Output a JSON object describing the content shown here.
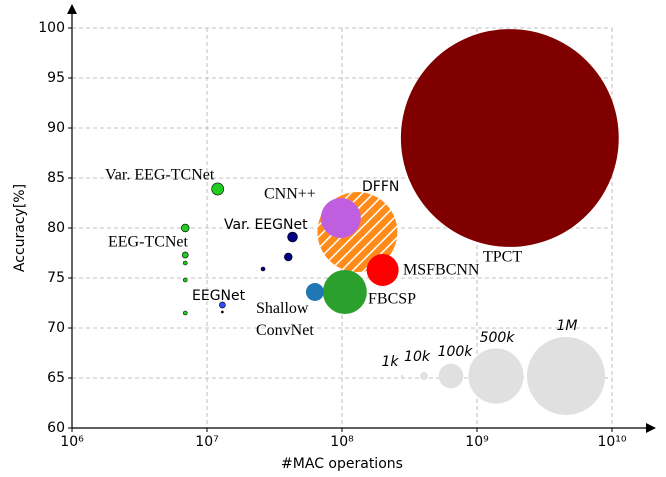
{
  "chart_data": {
    "type": "bubble",
    "xlabel": "#MAC operations",
    "ylabel": "Accuracy[%]",
    "xscale": "log",
    "grid": true,
    "xlim": [
      1000000,
      10000000000
    ],
    "xticks": [
      {
        "value": 1000000,
        "label": "10⁶"
      },
      {
        "value": 10000000,
        "label": "10⁷"
      },
      {
        "value": 100000000,
        "label": "10⁸"
      },
      {
        "value": 1000000000,
        "label": "10⁹"
      },
      {
        "value": 10000000000,
        "label": "10¹⁰"
      }
    ],
    "ylim": [
      60,
      100
    ],
    "yticks": [
      60,
      65,
      70,
      75,
      80,
      85,
      90,
      95,
      100
    ],
    "series": [
      {
        "name": "TPCT",
        "color": "#800000",
        "x": [
          1750000000
        ],
        "values": [
          89
        ],
        "sizes": [
          7800000
        ]
      },
      {
        "name": "DFFN",
        "color": "#ff8c1a",
        "hatch": true,
        "x": [
          130000000
        ],
        "values": [
          79.6
        ],
        "sizes": [
          1050000
        ]
      },
      {
        "name": "CNN++",
        "color": "#bf5fdf",
        "x": [
          98000000
        ],
        "values": [
          81
        ],
        "sizes": [
          263000
        ]
      },
      {
        "name": "MSFBCNN",
        "color": "#ff0000",
        "x": [
          200000000
        ],
        "values": [
          75.8
        ],
        "sizes": [
          168000
        ]
      },
      {
        "name": "FBCSP",
        "color": "#2ca02c",
        "x": [
          105000000
        ],
        "values": [
          73.6
        ],
        "sizes": [
          318000
        ]
      },
      {
        "name": "Shallow ConvNet",
        "color": "#1f77b4",
        "x": [
          63000000
        ],
        "values": [
          73.6
        ],
        "sizes": [
          53000
        ]
      },
      {
        "name": "Var. EEGNet",
        "color": "#000080",
        "x": [
          43000000,
          40000000,
          26000000
        ],
        "values": [
          79.1,
          77.1,
          75.9
        ],
        "sizes": [
          16000,
          10000,
          2600
        ]
      },
      {
        "name": "EEGNet",
        "color": "#3050ff",
        "colors": [
          "#3050ff",
          "#000000"
        ],
        "x": [
          13000000,
          13000000
        ],
        "values": [
          72.3,
          71.6
        ],
        "sizes": [
          6000,
          700
        ]
      },
      {
        "name": "EEG-TCNet",
        "color": "#22cc22",
        "x": [
          6900000,
          6900000,
          6900000,
          6900000,
          6900000
        ],
        "values": [
          80,
          77.3,
          76.5,
          74.8,
          71.5
        ],
        "sizes": [
          10000,
          6000,
          2600,
          2600,
          2600
        ]
      },
      {
        "name": "Var. EEG-TCNet",
        "color": "#22cc22",
        "x": [
          12000000
        ],
        "values": [
          83.9
        ],
        "sizes": [
          24000
        ]
      }
    ],
    "size_legend": {
      "values": [
        1000,
        10000,
        100000,
        500000,
        1000000
      ],
      "labels": [
        "1k",
        "10k",
        "100k",
        "500k",
        "1M"
      ],
      "color": "#e0e0e0"
    }
  }
}
